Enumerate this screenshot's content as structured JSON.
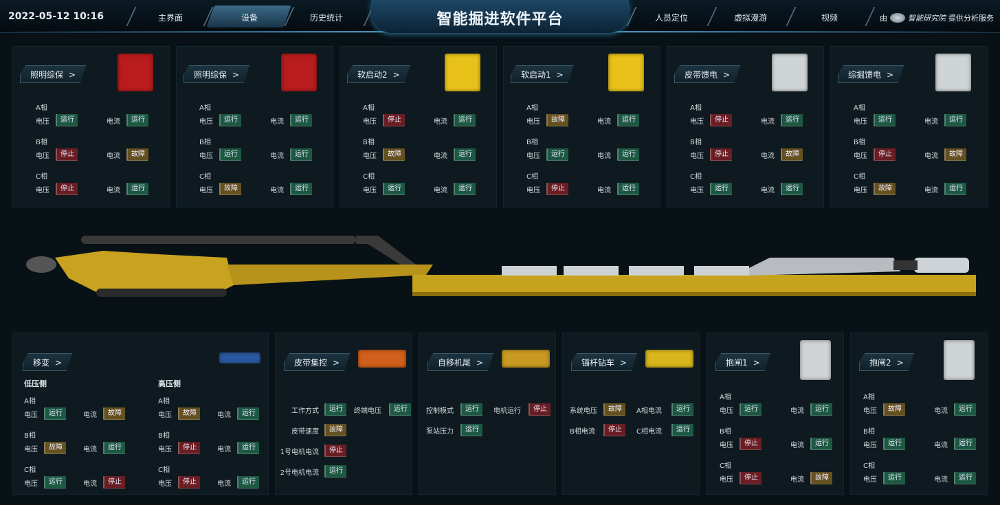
{
  "header": {
    "datetime": "2022-05-12 10:16",
    "title": "智能掘进软件平台",
    "nav_left": [
      {
        "label": "主界面",
        "active": false
      },
      {
        "label": "设备",
        "active": true
      },
      {
        "label": "历史统计",
        "active": false
      }
    ],
    "nav_right": [
      {
        "label": "人员定位"
      },
      {
        "label": "虚拟漫游"
      },
      {
        "label": "视频"
      }
    ],
    "provider_prefix": "由",
    "provider_logo_text": "智能研究院",
    "provider_suffix": "提供分析服务"
  },
  "labels": {
    "voltage": "电压",
    "current": "电流",
    "chevron": ">"
  },
  "status_colors": {
    "运行": "#1d5843",
    "停止": "#6a1d22",
    "故障": "#65501f"
  },
  "top_cards": [
    {
      "title": "照明综保",
      "image": "red-cabinet",
      "phases": [
        {
          "label": "A相",
          "voltage": "运行",
          "current": "运行"
        },
        {
          "label": "B相",
          "voltage": "停止",
          "current": "故障"
        },
        {
          "label": "C相",
          "voltage": "停止",
          "current": "运行"
        }
      ]
    },
    {
      "title": "照明综保",
      "image": "red-cabinet",
      "phases": [
        {
          "label": "A相",
          "voltage": "运行",
          "current": "运行"
        },
        {
          "label": "B相",
          "voltage": "运行",
          "current": "运行"
        },
        {
          "label": "C相",
          "voltage": "故障",
          "current": "运行"
        }
      ]
    },
    {
      "title": "软启动2",
      "image": "yellow-cabinet",
      "phases": [
        {
          "label": "A相",
          "voltage": "停止",
          "current": "运行"
        },
        {
          "label": "B相",
          "voltage": "故障",
          "current": "运行"
        },
        {
          "label": "C相",
          "voltage": "运行",
          "current": "运行"
        }
      ]
    },
    {
      "title": "软启动1",
      "image": "yellow-cabinet",
      "phases": [
        {
          "label": "A相",
          "voltage": "故障",
          "current": "运行"
        },
        {
          "label": "B相",
          "voltage": "运行",
          "current": "运行"
        },
        {
          "label": "C相",
          "voltage": "停止",
          "current": "运行"
        }
      ]
    },
    {
      "title": "皮带馈电",
      "image": "white-cabinet",
      "phases": [
        {
          "label": "A相",
          "voltage": "停止",
          "current": "运行"
        },
        {
          "label": "B相",
          "voltage": "停止",
          "current": "故障"
        },
        {
          "label": "C相",
          "voltage": "运行",
          "current": "运行"
        }
      ]
    },
    {
      "title": "综掘馈电",
      "image": "white-cabinet",
      "phases": [
        {
          "label": "A相",
          "voltage": "运行",
          "current": "运行"
        },
        {
          "label": "B相",
          "voltage": "停止",
          "current": "故障"
        },
        {
          "label": "C相",
          "voltage": "故障",
          "current": "运行"
        }
      ]
    }
  ],
  "transformer": {
    "title": "移变",
    "image": "blue-transformer",
    "sides": [
      {
        "label": "低压侧",
        "phases": [
          {
            "label": "A相",
            "voltage": "运行",
            "current": "故障"
          },
          {
            "label": "B相",
            "voltage": "故障",
            "current": "运行"
          },
          {
            "label": "C相",
            "voltage": "运行",
            "current": "停止"
          }
        ]
      },
      {
        "label": "高压侧",
        "phases": [
          {
            "label": "A相",
            "voltage": "故障",
            "current": "运行"
          },
          {
            "label": "B相",
            "voltage": "停止",
            "current": "运行"
          },
          {
            "label": "C相",
            "voltage": "停止",
            "current": "运行"
          }
        ]
      }
    ]
  },
  "belt_control": {
    "title": "皮带集控",
    "image": "belt-conveyor",
    "items": [
      {
        "label": "工作方式",
        "status": "运行"
      },
      {
        "label": "终端电压",
        "status": "运行"
      },
      {
        "label": "皮带速度",
        "status": "故障"
      },
      {
        "label": "1号电机电流",
        "status": "停止"
      },
      {
        "label": "2号电机电流",
        "status": "运行"
      }
    ]
  },
  "tail": {
    "title": "自移机尾",
    "image": "self-moving-tail",
    "items": [
      {
        "label": "控制模式",
        "status": "运行"
      },
      {
        "label": "电机运行",
        "status": "停止"
      },
      {
        "label": "泵站压力",
        "status": "运行"
      }
    ]
  },
  "drill": {
    "title": "锚杆钻车",
    "image": "bolter-drill",
    "items": [
      {
        "label": "系统电压",
        "status": "故障"
      },
      {
        "label": "A相电流",
        "status": "运行"
      },
      {
        "label": "B相电流",
        "status": "停止"
      },
      {
        "label": "C相电流",
        "status": "运行"
      }
    ]
  },
  "brakes": [
    {
      "title": "抱闸1",
      "image": "white-cabinet",
      "phases": [
        {
          "label": "A相",
          "voltage": "运行",
          "current": "运行"
        },
        {
          "label": "B相",
          "voltage": "停止",
          "current": "运行"
        },
        {
          "label": "C相",
          "voltage": "停止",
          "current": "故障"
        }
      ]
    },
    {
      "title": "抱闸2",
      "image": "white-cabinet",
      "phases": [
        {
          "label": "A相",
          "voltage": "故障",
          "current": "运行"
        },
        {
          "label": "B相",
          "voltage": "运行",
          "current": "运行"
        },
        {
          "label": "C相",
          "voltage": "运行",
          "current": "运行"
        }
      ]
    }
  ]
}
